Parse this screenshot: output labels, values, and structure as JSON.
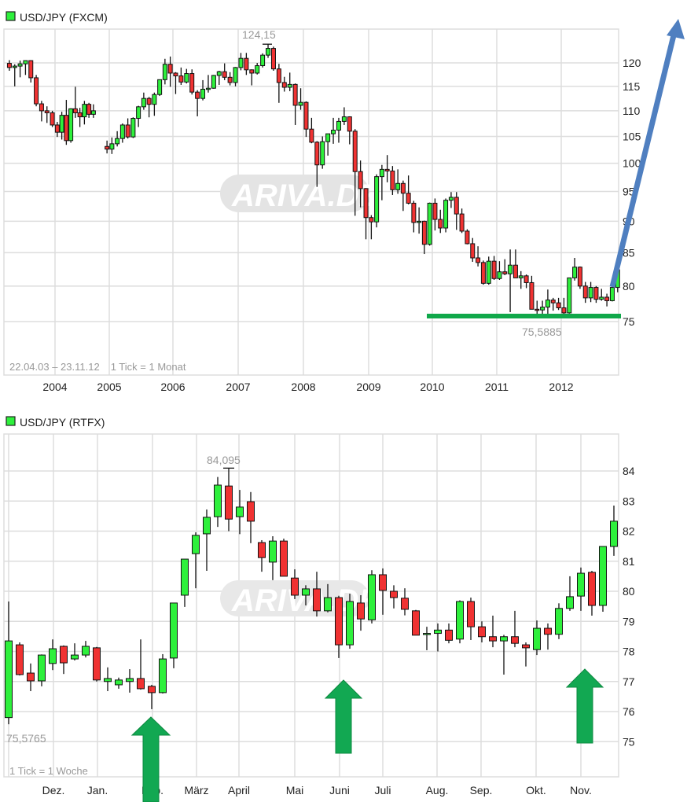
{
  "colors": {
    "up": "#2ef03c",
    "down": "#f03232",
    "grid": "#dddddd",
    "trend_arrow": "#4f7fc0",
    "support_line": "#10a84a",
    "block_arrow": "#12a852"
  },
  "watermark": "ARIVA.DE",
  "chart_data": [
    {
      "type": "candlestick",
      "title": "USD/JPY (FXCM)",
      "period": "22.04.03 – 23.11.12",
      "tick_note": "1 Tick = 1 Monat",
      "y_scale": "log",
      "ylim": [
        72,
        127
      ],
      "yticks": [
        "120",
        "115",
        "110",
        "105",
        "100",
        "95",
        "90",
        "85",
        "80",
        "75"
      ],
      "xticks": [
        "2004",
        "2005",
        "2006",
        "2007",
        "2008",
        "2009",
        "2010",
        "2011",
        "2012"
      ],
      "max_label": "124,15",
      "min_label": "75,5885",
      "annotations": {
        "support_level": 75.6,
        "trend_arrow": "up"
      },
      "candles": [
        [
          "2003-04",
          119.9,
          120.6,
          118.3,
          119.0
        ],
        [
          "2003-05",
          119.0,
          119.7,
          115.0,
          119.3
        ],
        [
          "2003-06",
          119.3,
          120.5,
          116.9,
          119.8
        ],
        [
          "2003-07",
          119.8,
          120.5,
          117.4,
          120.5
        ],
        [
          "2003-08",
          120.5,
          120.6,
          115.8,
          116.8
        ],
        [
          "2003-09",
          116.8,
          117.4,
          110.9,
          111.4
        ],
        [
          "2003-10",
          111.4,
          112.0,
          107.9,
          110.0
        ],
        [
          "2003-11",
          110.0,
          110.9,
          107.6,
          109.6
        ],
        [
          "2003-12",
          109.6,
          110.0,
          106.8,
          107.2
        ],
        [
          "2004-01",
          107.2,
          107.8,
          104.9,
          105.8
        ],
        [
          "2004-02",
          105.8,
          109.8,
          104.4,
          109.1
        ],
        [
          "2004-03",
          109.1,
          112.2,
          103.4,
          104.2
        ],
        [
          "2004-04",
          104.2,
          110.5,
          103.8,
          110.4
        ],
        [
          "2004-05",
          110.4,
          114.9,
          108.6,
          109.6
        ],
        [
          "2004-06",
          109.6,
          110.6,
          106.8,
          108.8
        ],
        [
          "2004-07",
          108.8,
          112.0,
          107.3,
          111.3
        ],
        [
          "2004-08",
          111.3,
          111.6,
          108.6,
          109.3
        ],
        [
          "2004-09",
          109.3,
          111.3,
          108.6,
          110.0
        ],
        [
          "2004-12",
          103.1,
          104.2,
          101.8,
          102.6
        ],
        [
          "2005-01",
          102.6,
          104.8,
          101.7,
          103.6
        ],
        [
          "2005-02",
          103.6,
          106.0,
          103.1,
          104.6
        ],
        [
          "2005-03",
          104.6,
          107.5,
          103.8,
          107.2
        ],
        [
          "2005-04",
          107.2,
          108.5,
          104.6,
          104.9
        ],
        [
          "2005-05",
          104.9,
          108.7,
          104.7,
          108.5
        ],
        [
          "2005-06",
          108.5,
          111.0,
          106.8,
          110.8
        ],
        [
          "2005-07",
          110.8,
          113.7,
          110.2,
          112.5
        ],
        [
          "2005-08",
          112.5,
          112.8,
          108.7,
          111.3
        ],
        [
          "2005-09",
          111.3,
          113.7,
          109.0,
          113.3
        ],
        [
          "2005-10",
          113.3,
          116.4,
          113.0,
          116.4
        ],
        [
          "2005-11",
          116.4,
          120.9,
          115.4,
          119.7
        ],
        [
          "2005-12",
          119.7,
          121.4,
          114.9,
          117.8
        ],
        [
          "2006-01",
          117.8,
          118.0,
          113.4,
          117.2
        ],
        [
          "2006-02",
          117.2,
          119.0,
          115.3,
          115.9
        ],
        [
          "2006-03",
          115.9,
          118.7,
          115.6,
          117.7
        ],
        [
          "2006-04",
          117.7,
          118.6,
          113.3,
          113.8
        ],
        [
          "2006-05",
          113.8,
          114.2,
          108.9,
          112.5
        ],
        [
          "2006-06",
          112.5,
          116.3,
          112.1,
          114.4
        ],
        [
          "2006-07",
          114.4,
          117.4,
          113.7,
          114.6
        ],
        [
          "2006-08",
          114.6,
          117.4,
          114.5,
          117.3
        ],
        [
          "2006-09",
          117.3,
          118.3,
          115.3,
          118.1
        ],
        [
          "2006-10",
          118.1,
          119.9,
          116.3,
          116.9
        ],
        [
          "2006-11",
          116.9,
          118.0,
          115.2,
          115.8
        ],
        [
          "2006-12",
          115.8,
          119.1,
          115.0,
          119.0
        ],
        [
          "2007-01",
          119.0,
          122.2,
          118.4,
          121.0
        ],
        [
          "2007-02",
          121.0,
          122.2,
          117.4,
          118.5
        ],
        [
          "2007-03",
          118.5,
          118.6,
          115.2,
          117.8
        ],
        [
          "2007-04",
          117.8,
          120.0,
          117.5,
          119.4
        ],
        [
          "2007-05",
          119.4,
          122.1,
          119.0,
          121.7
        ],
        [
          "2007-06",
          121.7,
          124.15,
          121.1,
          123.2
        ],
        [
          "2007-07",
          123.2,
          123.6,
          118.3,
          118.7
        ],
        [
          "2007-08",
          118.7,
          119.8,
          111.6,
          115.8
        ],
        [
          "2007-09",
          115.8,
          117.0,
          113.9,
          114.8
        ],
        [
          "2007-10",
          114.8,
          117.9,
          114.0,
          115.4
        ],
        [
          "2007-11",
          115.4,
          115.6,
          107.2,
          111.1
        ],
        [
          "2007-12",
          111.1,
          114.6,
          110.2,
          111.7
        ],
        [
          "2008-01",
          111.7,
          111.9,
          104.9,
          106.4
        ],
        [
          "2008-02",
          106.4,
          108.6,
          103.7,
          103.9
        ],
        [
          "2008-03",
          103.9,
          104.1,
          95.8,
          99.7
        ],
        [
          "2008-04",
          99.7,
          105.0,
          99.0,
          104.0
        ],
        [
          "2008-05",
          104.0,
          105.5,
          101.4,
          105.5
        ],
        [
          "2008-06",
          105.5,
          108.6,
          103.6,
          106.2
        ],
        [
          "2008-07",
          106.2,
          108.6,
          103.8,
          107.9
        ],
        [
          "2008-08",
          107.9,
          110.7,
          107.2,
          108.8
        ],
        [
          "2008-09",
          108.8,
          108.9,
          103.5,
          106.0
        ],
        [
          "2008-10",
          106.0,
          106.4,
          90.9,
          98.5
        ],
        [
          "2008-11",
          98.5,
          100.5,
          92.3,
          95.5
        ],
        [
          "2008-12",
          95.5,
          95.6,
          87.1,
          90.6
        ],
        [
          "2009-01",
          90.6,
          91.0,
          87.1,
          89.9
        ],
        [
          "2009-02",
          89.9,
          98.0,
          89.0,
          97.6
        ],
        [
          "2009-03",
          97.6,
          99.7,
          93.5,
          98.9
        ],
        [
          "2009-04",
          98.9,
          101.5,
          96.6,
          98.6
        ],
        [
          "2009-05",
          98.6,
          99.5,
          94.4,
          95.3
        ],
        [
          "2009-06",
          95.3,
          98.9,
          94.6,
          96.4
        ],
        [
          "2009-07",
          96.4,
          96.9,
          91.7,
          94.7
        ],
        [
          "2009-08",
          94.7,
          97.8,
          92.8,
          93.0
        ],
        [
          "2009-09",
          93.0,
          93.4,
          88.2,
          89.8
        ],
        [
          "2009-10",
          89.8,
          92.3,
          88.0,
          90.0
        ],
        [
          "2009-11",
          90.0,
          90.1,
          84.8,
          86.3
        ],
        [
          "2009-12",
          86.3,
          93.1,
          86.1,
          93.0
        ],
        [
          "2010-01",
          93.0,
          93.8,
          88.5,
          90.3
        ],
        [
          "2010-02",
          90.3,
          91.9,
          88.1,
          88.9
        ],
        [
          "2010-03",
          88.9,
          93.8,
          88.2,
          93.5
        ],
        [
          "2010-04",
          93.5,
          94.9,
          92.2,
          94.0
        ],
        [
          "2010-05",
          94.0,
          94.9,
          88.6,
          91.2
        ],
        [
          "2010-06",
          91.2,
          92.1,
          88.1,
          88.4
        ],
        [
          "2010-07",
          88.4,
          88.7,
          86.3,
          86.4
        ],
        [
          "2010-08",
          86.4,
          87.3,
          83.6,
          84.2
        ],
        [
          "2010-09",
          84.2,
          86.0,
          82.9,
          83.5
        ],
        [
          "2010-10",
          83.5,
          83.8,
          80.2,
          80.4
        ],
        [
          "2010-11",
          80.4,
          84.4,
          80.2,
          83.7
        ],
        [
          "2010-12",
          83.7,
          84.5,
          80.9,
          81.1
        ],
        [
          "2011-01",
          81.1,
          83.7,
          80.9,
          82.1
        ],
        [
          "2011-02",
          82.1,
          84.0,
          81.6,
          81.8
        ],
        [
          "2011-03",
          81.8,
          85.5,
          76.3,
          83.1
        ],
        [
          "2011-04",
          83.1,
          85.5,
          81.3,
          81.2
        ],
        [
          "2011-05",
          81.2,
          82.2,
          79.6,
          81.5
        ],
        [
          "2011-06",
          81.5,
          81.7,
          79.7,
          80.5
        ],
        [
          "2011-07",
          80.5,
          81.5,
          76.7,
          76.7
        ],
        [
          "2011-08",
          76.7,
          77.9,
          75.9,
          76.6
        ],
        [
          "2011-09",
          76.6,
          77.9,
          75.9,
          77.0
        ],
        [
          "2011-10",
          77.0,
          79.5,
          75.5885,
          78.0
        ],
        [
          "2011-11",
          78.0,
          78.3,
          76.5,
          77.6
        ],
        [
          "2011-12",
          77.6,
          78.3,
          76.6,
          76.9
        ],
        [
          "2012-01",
          76.9,
          78.3,
          76.0,
          76.2
        ],
        [
          "2012-02",
          76.2,
          81.2,
          76.1,
          81.2
        ],
        [
          "2012-03",
          81.2,
          84.2,
          80.8,
          82.8
        ],
        [
          "2012-04",
          82.8,
          82.9,
          79.6,
          80.0
        ],
        [
          "2012-05",
          80.0,
          80.6,
          77.6,
          78.3
        ],
        [
          "2012-06",
          78.3,
          80.6,
          77.7,
          79.8
        ],
        [
          "2012-07",
          79.8,
          80.0,
          77.6,
          78.1
        ],
        [
          "2012-08",
          78.1,
          79.6,
          77.9,
          78.4
        ],
        [
          "2012-09",
          78.4,
          78.9,
          77.1,
          77.9
        ],
        [
          "2012-10",
          77.9,
          80.3,
          77.8,
          79.8
        ],
        [
          "2012-11",
          79.8,
          82.8,
          79.1,
          82.4
        ]
      ]
    },
    {
      "type": "candlestick",
      "title": "USD/JPY (RTFX)",
      "tick_note": "1 Tick = 1 Woche",
      "y_scale": "linear",
      "ylim": [
        73.8,
        85.2
      ],
      "yticks": [
        "84",
        "83",
        "82",
        "81",
        "80",
        "79",
        "78",
        "77",
        "76",
        "75"
      ],
      "xticks": [
        "Dez.",
        "Jan.",
        "Feb.",
        "März",
        "April",
        "Mai",
        "Juni",
        "Juli",
        "Aug.",
        "Sep.",
        "Okt.",
        "Nov."
      ],
      "max_label": "84,095",
      "min_label": "75,5765",
      "annotations": {
        "buy_arrows": 3
      },
      "candles": [
        [
          75.8,
          79.66,
          75.58,
          78.35
        ],
        [
          78.22,
          78.3,
          77.2,
          77.23
        ],
        [
          77.28,
          77.6,
          76.68,
          77.02
        ],
        [
          77.02,
          77.9,
          76.84,
          77.88
        ],
        [
          77.6,
          78.4,
          77.38,
          78.09
        ],
        [
          78.17,
          78.2,
          77.25,
          77.62
        ],
        [
          77.75,
          78.27,
          77.7,
          77.88
        ],
        [
          77.88,
          78.35,
          77.8,
          78.17
        ],
        [
          78.12,
          78.15,
          77.0,
          77.05
        ],
        [
          77.0,
          77.47,
          76.68,
          77.1
        ],
        [
          76.89,
          77.13,
          76.76,
          77.05
        ],
        [
          77.0,
          77.41,
          76.63,
          77.1
        ],
        [
          77.1,
          78.4,
          76.73,
          76.76
        ],
        [
          76.84,
          76.89,
          76.08,
          76.63
        ],
        [
          76.63,
          77.91,
          76.6,
          77.75
        ],
        [
          77.78,
          79.61,
          77.44,
          79.61
        ],
        [
          79.87,
          81.07,
          79.48,
          81.07
        ],
        [
          81.25,
          81.96,
          80.1,
          81.86
        ],
        [
          81.91,
          82.72,
          80.68,
          82.46
        ],
        [
          82.48,
          83.8,
          82.14,
          83.53
        ],
        [
          83.5,
          84.095,
          82.0,
          82.4
        ],
        [
          82.48,
          83.37,
          81.9,
          82.8
        ],
        [
          82.98,
          83.3,
          81.6,
          82.33
        ],
        [
          81.62,
          81.7,
          80.65,
          81.12
        ],
        [
          80.97,
          81.83,
          80.37,
          81.67
        ],
        [
          81.67,
          81.75,
          80.5,
          80.5
        ],
        [
          80.44,
          80.73,
          79.74,
          79.87
        ],
        [
          79.87,
          80.2,
          79.53,
          80.08
        ],
        [
          80.08,
          80.65,
          79.16,
          79.35
        ],
        [
          79.35,
          80.24,
          79.3,
          79.79
        ],
        [
          79.79,
          79.85,
          77.78,
          78.22
        ],
        [
          78.22,
          79.92,
          78.09,
          79.66
        ],
        [
          79.61,
          79.87,
          78.69,
          79.08
        ],
        [
          79.05,
          80.7,
          78.93,
          80.55
        ],
        [
          80.55,
          80.76,
          79.22,
          80.03
        ],
        [
          80.0,
          80.2,
          79.43,
          79.79
        ],
        [
          79.77,
          80.1,
          79.2,
          79.4
        ],
        [
          79.35,
          79.38,
          78.54,
          78.54
        ],
        [
          78.6,
          78.82,
          78.04,
          78.6
        ],
        [
          78.6,
          78.93,
          78.0,
          78.71
        ],
        [
          78.71,
          78.93,
          78.27,
          78.37
        ],
        [
          78.41,
          79.7,
          78.27,
          79.66
        ],
        [
          79.66,
          79.79,
          78.38,
          78.82
        ],
        [
          78.82,
          79.0,
          78.3,
          78.49
        ],
        [
          78.49,
          79.19,
          78.14,
          78.35
        ],
        [
          78.35,
          78.55,
          77.23,
          78.49
        ],
        [
          78.49,
          79.35,
          78.14,
          78.27
        ],
        [
          78.22,
          78.3,
          77.5,
          78.12
        ],
        [
          78.06,
          79.03,
          77.88,
          78.77
        ],
        [
          78.77,
          78.93,
          78.06,
          78.57
        ],
        [
          78.57,
          79.6,
          78.41,
          79.43
        ],
        [
          79.43,
          80.5,
          79.35,
          79.82
        ],
        [
          79.84,
          80.79,
          79.35,
          80.6
        ],
        [
          80.63,
          80.68,
          79.19,
          79.53
        ],
        [
          79.53,
          81.5,
          79.32,
          81.49
        ],
        [
          81.49,
          82.85,
          81.18,
          82.33
        ]
      ]
    }
  ]
}
